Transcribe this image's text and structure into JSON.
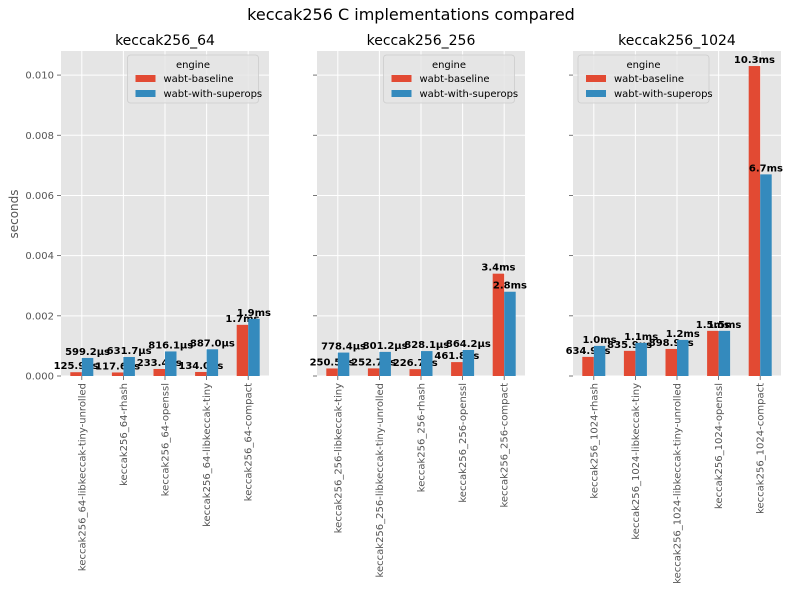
{
  "figure": {
    "title": "keccak256 C implementations compared",
    "ylabel": "seconds"
  },
  "legend": {
    "title": "engine",
    "entries": [
      "wabt-baseline",
      "wabt-with-superops"
    ]
  },
  "colors": {
    "wabt-baseline": "#e24a33",
    "wabt-with-superops": "#348abd",
    "panel_bg": "#e5e5e5",
    "grid": "#ffffff"
  },
  "chart_data": [
    {
      "type": "bar",
      "title": "keccak256_64",
      "ylabel": "seconds",
      "ylim": [
        0,
        0.0108
      ],
      "yticks": [
        "0.000",
        "0.002",
        "0.004",
        "0.006",
        "0.008",
        "0.010"
      ],
      "grid": true,
      "legend_position": "top-center",
      "categories": [
        "keccak256_64-libkeccak-tiny-unrolled",
        "keccak256_64-rhash",
        "keccak256_64-openssl",
        "keccak256_64-libkeccak-tiny",
        "keccak256_64-compact"
      ],
      "series": [
        {
          "name": "wabt-baseline",
          "values": [
            0.0001259,
            0.0001176,
            0.0002334,
            0.000134,
            0.0017
          ],
          "labels": [
            "125.9µs",
            "117.6µs",
            "233.4µs",
            "134.0µs",
            "1.7ms"
          ]
        },
        {
          "name": "wabt-with-superops",
          "values": [
            0.0005992,
            0.0006317,
            0.0008161,
            0.000887,
            0.0019
          ],
          "labels": [
            "599.2µs",
            "631.7µs",
            "816.1µs",
            "887.0µs",
            "1.9ms"
          ]
        }
      ]
    },
    {
      "type": "bar",
      "title": "keccak256_256",
      "ylim": [
        0,
        0.0108
      ],
      "yticks": [
        "0.000",
        "0.002",
        "0.004",
        "0.006",
        "0.008",
        "0.010"
      ],
      "grid": true,
      "legend_position": "top-center",
      "categories": [
        "keccak256_256-libkeccak-tiny",
        "keccak256_256-libkeccak-tiny-unrolled",
        "keccak256_256-rhash",
        "keccak256_256-openssl",
        "keccak256_256-compact"
      ],
      "series": [
        {
          "name": "wabt-baseline",
          "values": [
            0.0002505,
            0.0002527,
            0.0002267,
            0.0004618,
            0.0034
          ],
          "labels": [
            "250.5µs",
            "252.7µs",
            "226.7µs",
            "461.8µs",
            "3.4ms"
          ]
        },
        {
          "name": "wabt-with-superops",
          "values": [
            0.0007784,
            0.0008012,
            0.0008281,
            0.0008642,
            0.0028
          ],
          "labels": [
            "778.4µs",
            "801.2µs",
            "828.1µs",
            "864.2µs",
            "2.8ms"
          ]
        }
      ]
    },
    {
      "type": "bar",
      "title": "keccak256_1024",
      "ylim": [
        0,
        0.0108
      ],
      "yticks": [
        "0.000",
        "0.002",
        "0.004",
        "0.006",
        "0.008",
        "0.010"
      ],
      "grid": true,
      "legend_position": "top-left",
      "categories": [
        "keccak256_1024-rhash",
        "keccak256_1024-libkeccak-tiny",
        "keccak256_1024-libkeccak-tiny-unrolled",
        "keccak256_1024-openssl",
        "keccak256_1024-compact"
      ],
      "series": [
        {
          "name": "wabt-baseline",
          "values": [
            0.0006349,
            0.0008359,
            0.0008989,
            0.0015,
            0.0103
          ],
          "labels": [
            "634.9µs",
            "835.9µs",
            "898.9µs",
            "1.5ms",
            "10.3ms"
          ]
        },
        {
          "name": "wabt-with-superops",
          "values": [
            0.001,
            0.0011,
            0.0012,
            0.0015,
            0.0067
          ],
          "labels": [
            "1.0ms",
            "1.1ms",
            "1.2ms",
            "1.5ms",
            "6.7ms"
          ]
        }
      ]
    }
  ]
}
